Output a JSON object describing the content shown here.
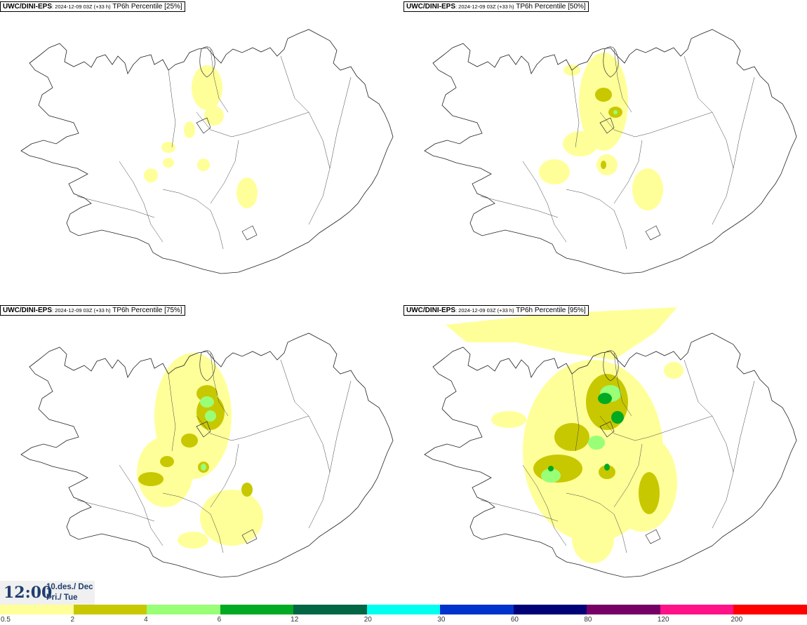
{
  "panels": [
    {
      "model": "UWC/DINI-EPS",
      "run": ": 2024-12-09 03Z (+33 h)",
      "field": " TP6h Percentile [25%]",
      "level": 1
    },
    {
      "model": "UWC/DINI-EPS",
      "run": ": 2024-12-09 03Z (+33 h)",
      "field": " TP6h Percentile [50%]",
      "level": 2
    },
    {
      "model": "UWC/DINI-EPS",
      "run": ": 2024-12-09 03Z (+33 h)",
      "field": " TP6h Percentile [75%]",
      "level": 3
    },
    {
      "model": "UWC/DINI-EPS",
      "run": ": 2024-12-09 03Z (+33 h)",
      "field": " TP6h Percentile [95%]",
      "level": 4
    }
  ],
  "valid_time": {
    "time": "12:00",
    "date_line1": "10.des./ Dec",
    "date_line2": "Þri./ Tue"
  },
  "legend": {
    "labels": [
      "0.5",
      "2",
      "4",
      "6",
      "12",
      "20",
      "30",
      "60",
      "80",
      "120",
      "200"
    ],
    "colors": [
      "#ffff99",
      "#c8c800",
      "#99ff77",
      "#00aa22",
      "#006644",
      "#00ffee",
      "#0033cc",
      "#000077",
      "#770066",
      "#ff1188",
      "#ff0000"
    ]
  }
}
